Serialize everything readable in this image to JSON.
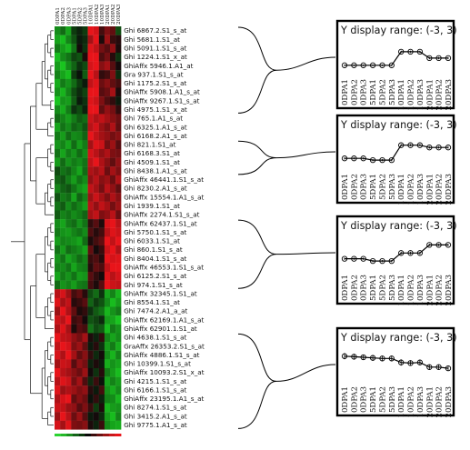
{
  "heatmap": {
    "columns": [
      "0DPA1",
      "0DPA2",
      "0DPA3",
      "5DPA1",
      "5DPA2",
      "5DPA3",
      "10DPA1",
      "10DPA2",
      "10DPA3",
      "20DPA1",
      "20DPA2",
      "20DPA3"
    ],
    "probes": [
      "Ghi 6867.2.S1_s_at",
      "Ghi 5681.1.S1_at",
      "Ghi 5091.1.S1_s_at",
      "Ghi 1224.1.S1_x_at",
      "GhiAffx 5946.1.A1_at",
      "Gra 937.1.S1_s_at",
      "Ghi 1175.2.S1_s_at",
      "GhiAffx 5908.1.A1_s_at",
      "GhiAffx 9267.1.S1_s_at",
      "Ghi 4975.1.S1_x_at",
      "Ghi 765.1.A1_s_at",
      "Ghi 6325.1.A1_s_at",
      "Ghi 6168.2.A1_s_at",
      "Ghi 821.1.S1_at",
      "Ghi 6168.3.S1_at",
      "Ghi 4509.1.S1_at",
      "Ghi 8438.1.A1_s_at",
      "GhiAffx 46441.1.S1_s_at",
      "Ghi 8230.2.A1_s_at",
      "GhiAffx 15554.1.A1_s_at",
      "Ghi 1939.1.S1_at",
      "GhiAffx 2274.1.S1_s_at",
      "GhiAffx 62437.1.S1_at",
      "Ghi 5750.1.S1_s_at",
      "Ghi 6033.1.S1_at",
      "Ghi 860.1.S1_s_at",
      "Ghi 8404.1.S1_s_at",
      "GhiAffx 46553.1.S1_s_at",
      "Ghi 6125.2.S1_s_at",
      "Ghi 974.1.S1_s_at",
      "GhiAffx 32345.1.S1_at",
      "Ghi 8554.1.S1_at",
      "Ghi 7474.2.A1_a_at",
      "GhiAffx 62169.1.A1_s_at",
      "GhiAffx 62901.1.S1_at",
      "Ghi 4638.1.S1_s_at",
      "GraAffx 26353.2.S1_s_at",
      "GhiAffx 4886.1.S1_s_at",
      "Ghi 10399.1.S1_s_at",
      "GhiAffx 10093.2.S1_x_at",
      "Ghi 4215.1.S1_s_at",
      "Ghi 6166.1.S1_s_at",
      "GhiAffx 23195.1.A1_s_at",
      "Ghi 8274.1.S1_s_at",
      "Ghi 3415.2.A1_s_at",
      "Ghi 9775.1.A1_s_at"
    ],
    "colors": {
      "high": "#e8141a",
      "low": "#19c41f",
      "mid": "#0a0a0a"
    },
    "values": [
      [
        -1.6,
        -1.2,
        -1.9,
        -0.6,
        -0.3,
        -0.6,
        2.4,
        2.1,
        0.6,
        1.2,
        0.9,
        -0.8
      ],
      [
        -1.9,
        -2.2,
        -1.5,
        -0.9,
        -0.2,
        -0.4,
        1.6,
        2.6,
        0.2,
        1.5,
        0.5,
        0.3
      ],
      [
        -1.4,
        -1.8,
        -2.1,
        -1.3,
        0.1,
        -0.5,
        2.2,
        1.9,
        1.1,
        0.8,
        1.4,
        0.2
      ],
      [
        -2.2,
        -1.6,
        -1.3,
        -0.7,
        -0.9,
        0.2,
        2.6,
        2.3,
        0.7,
        1.1,
        0.3,
        -0.5
      ],
      [
        -1.8,
        -2.4,
        -1.6,
        -1.1,
        -0.5,
        -0.8,
        2.1,
        2.4,
        1.3,
        1.6,
        0.8,
        0.1
      ],
      [
        -1.5,
        -1.9,
        -2.2,
        -0.6,
        -0.1,
        -1.0,
        2.5,
        1.8,
        0.4,
        0.6,
        1.2,
        -0.4
      ],
      [
        -2.0,
        -1.4,
        -1.7,
        -1.2,
        -0.6,
        -0.2,
        1.9,
        2.2,
        1.0,
        1.3,
        0.9,
        0.6
      ],
      [
        -1.7,
        -2.1,
        -1.5,
        -0.8,
        -0.4,
        -0.7,
        2.3,
        2.5,
        0.8,
        1.0,
        1.6,
        0.2
      ],
      [
        -2.3,
        -1.7,
        -1.8,
        -1.0,
        -0.2,
        -0.5,
        2.2,
        2.0,
        1.2,
        0.7,
        0.4,
        -0.2
      ],
      [
        -1.6,
        -2.0,
        -1.4,
        -0.5,
        -0.8,
        -0.3,
        2.4,
        2.6,
        0.9,
        1.4,
        1.1,
        0.4
      ],
      [
        -1.2,
        -1.5,
        -1.8,
        -1.4,
        -1.0,
        -1.2,
        2.0,
        1.7,
        1.9,
        1.6,
        1.3,
        1.0
      ],
      [
        -1.9,
        -1.3,
        -1.6,
        -1.1,
        -1.3,
        -0.9,
        1.8,
        2.1,
        1.5,
        1.2,
        1.7,
        0.9
      ],
      [
        -1.4,
        -1.8,
        -1.2,
        -1.6,
        -1.5,
        -1.1,
        2.3,
        1.9,
        1.6,
        1.4,
        1.1,
        1.3
      ],
      [
        -1.7,
        -1.5,
        -1.9,
        -1.2,
        -1.8,
        -1.4,
        1.6,
        2.2,
        2.0,
        1.1,
        1.5,
        0.8
      ],
      [
        -1.3,
        -1.9,
        -1.4,
        -1.7,
        -1.2,
        -1.6,
        2.1,
        1.8,
        1.4,
        1.7,
        1.2,
        1.1
      ],
      [
        -1.8,
        -1.2,
        -1.7,
        -1.4,
        -1.6,
        -1.3,
        1.9,
        2.4,
        1.7,
        1.3,
        0.9,
        1.4
      ],
      [
        -0.8,
        -1.3,
        -1.1,
        -1.5,
        -1.9,
        -1.2,
        1.7,
        1.5,
        1.8,
        1.0,
        1.6,
        1.2
      ],
      [
        -1.1,
        -0.9,
        -1.4,
        -1.8,
        -1.3,
        -1.6,
        1.4,
        1.8,
        1.3,
        1.5,
        1.0,
        1.7
      ],
      [
        -1.5,
        -1.1,
        -0.9,
        -1.3,
        -1.7,
        -1.9,
        1.9,
        1.6,
        1.1,
        1.8,
        1.4,
        0.9
      ],
      [
        -0.9,
        -1.4,
        -1.2,
        -1.9,
        -1.1,
        -1.5,
        1.5,
        2.0,
        1.6,
        1.2,
        1.7,
        1.3
      ],
      [
        -1.3,
        -1.0,
        -1.6,
        -1.2,
        -1.5,
        -1.8,
        1.8,
        1.4,
        1.9,
        1.6,
        1.1,
        1.5
      ],
      [
        -1.0,
        -1.5,
        -1.3,
        -1.6,
        -1.4,
        -1.1,
        1.6,
        1.9,
        1.2,
        1.4,
        1.8,
        1.0
      ],
      [
        -1.6,
        -1.9,
        -1.4,
        -1.2,
        -1.7,
        -1.3,
        0.4,
        0.8,
        0.2,
        2.1,
        2.4,
        1.8
      ],
      [
        -1.4,
        -1.7,
        -1.8,
        -1.5,
        -1.3,
        -1.6,
        0.7,
        0.3,
        0.6,
        1.8,
        2.2,
        2.0
      ],
      [
        -1.8,
        -1.5,
        -1.6,
        -1.7,
        -1.9,
        -1.2,
        0.2,
        0.6,
        0.9,
        2.3,
        1.9,
        2.5
      ],
      [
        -1.3,
        -1.8,
        -1.2,
        -1.4,
        -1.6,
        -1.9,
        0.9,
        0.1,
        0.5,
        2.0,
        2.6,
        1.7
      ],
      [
        -1.7,
        -1.3,
        -1.9,
        -1.6,
        -1.2,
        -1.5,
        0.5,
        0.7,
        0.3,
        2.4,
        2.1,
        2.2
      ],
      [
        -1.5,
        -1.6,
        -1.3,
        -1.9,
        -1.5,
        -1.4,
        0.3,
        0.9,
        0.7,
        1.9,
        2.3,
        2.4
      ],
      [
        -1.9,
        -1.4,
        -1.7,
        -1.3,
        -1.8,
        -1.7,
        0.8,
        0.4,
        0.1,
        2.2,
        1.8,
        2.1
      ],
      [
        -1.2,
        -1.7,
        -1.5,
        -1.8,
        -1.4,
        -1.3,
        0.6,
        0.2,
        0.8,
        2.5,
        2.0,
        1.9
      ],
      [
        1.8,
        2.1,
        1.5,
        0.6,
        0.9,
        0.3,
        -0.8,
        -1.2,
        -0.5,
        -1.9,
        -1.5,
        -2.1
      ],
      [
        2.2,
        1.6,
        1.9,
        0.3,
        0.5,
        0.8,
        -1.1,
        -0.6,
        -0.9,
        -1.6,
        -2.2,
        -1.8
      ],
      [
        1.5,
        2.3,
        1.7,
        0.9,
        0.2,
        0.4,
        -0.5,
        -1.0,
        -1.3,
        -2.1,
        -1.7,
        -1.4
      ],
      [
        2.0,
        1.8,
        2.4,
        0.5,
        0.7,
        0.1,
        -0.9,
        -0.7,
        -0.4,
        -1.8,
        -1.9,
        -2.3
      ],
      [
        1.7,
        2.2,
        1.6,
        0.2,
        0.8,
        0.6,
        -1.3,
        -0.8,
        -1.0,
        -2.2,
        -1.4,
        -1.7
      ],
      [
        2.3,
        1.9,
        1.8,
        1.4,
        1.1,
        1.6,
        0.2,
        -0.3,
        0.4,
        -1.5,
        -1.9,
        -1.6
      ],
      [
        1.9,
        2.4,
        2.1,
        1.2,
        1.5,
        0.9,
        -0.2,
        0.3,
        -0.5,
        -1.8,
        -1.4,
        -2.0
      ],
      [
        2.1,
        1.7,
        2.3,
        1.6,
        0.9,
        1.3,
        0.4,
        -0.4,
        0.1,
        -1.6,
        -2.1,
        -1.5
      ],
      [
        1.6,
        2.0,
        1.9,
        0.8,
        1.4,
        1.1,
        -0.3,
        0.2,
        -0.2,
        -2.0,
        -1.7,
        -1.9
      ],
      [
        2.4,
        1.8,
        1.6,
        1.3,
        1.0,
        1.5,
        0.1,
        -0.5,
        0.3,
        -1.4,
        -1.8,
        -2.2
      ],
      [
        1.8,
        2.2,
        2.0,
        1.1,
        1.6,
        0.7,
        -0.4,
        0.5,
        -0.1,
        -1.9,
        -1.5,
        -1.8
      ],
      [
        2.2,
        1.5,
        1.7,
        1.5,
        1.2,
        1.4,
        0.3,
        -0.2,
        0.6,
        -1.7,
        -2.0,
        -1.6
      ],
      [
        1.7,
        2.1,
        2.4,
        0.9,
        1.3,
        1.0,
        -0.1,
        0.4,
        -0.3,
        -1.5,
        -1.6,
        -2.1
      ],
      [
        2.0,
        1.9,
        1.5,
        1.4,
        0.8,
        1.2,
        0.5,
        -0.6,
        0.2,
        -2.1,
        -1.8,
        -1.7
      ],
      [
        1.5,
        2.3,
        1.8,
        1.0,
        1.5,
        0.8,
        -0.2,
        0.1,
        -0.4,
        -1.8,
        -2.2,
        -1.5
      ],
      [
        2.1,
        1.6,
        2.2,
        1.2,
        1.1,
        1.3,
        0.2,
        -0.3,
        0.5,
        -1.6,
        -1.9,
        -2.0
      ]
    ]
  },
  "clusters": [
    {
      "title": "Y display range: (-3, 3)",
      "first_row": 0,
      "last_row": 9,
      "profile": [
        -1.55,
        -1.55,
        -1.55,
        -1.55,
        -1.55,
        -1.55,
        0.8,
        0.8,
        0.8,
        -0.3,
        -0.3,
        -0.3
      ],
      "err": [
        0.15,
        0.15,
        0.15,
        0.15,
        0.15,
        0.15,
        0.2,
        0.2,
        0.2,
        0.2,
        0.2,
        0.2
      ]
    },
    {
      "title": "Y display range: (-3, 3)",
      "first_row": 13,
      "last_row": 16,
      "profile": [
        -1.3,
        -1.3,
        -1.3,
        -1.6,
        -1.6,
        -1.6,
        1.0,
        1.0,
        1.0,
        0.6,
        0.6,
        0.6
      ],
      "err": [
        0.2,
        0.2,
        0.2,
        0.2,
        0.2,
        0.2,
        0.2,
        0.2,
        0.2,
        0.2,
        0.2,
        0.2
      ]
    },
    {
      "title": "Y display range: (-3, 3)",
      "first_row": 22,
      "last_row": 29,
      "profile": [
        -1.2,
        -1.2,
        -1.2,
        -1.6,
        -1.6,
        -1.6,
        -0.2,
        -0.2,
        -0.2,
        1.2,
        1.2,
        1.2
      ],
      "err": [
        0.2,
        0.2,
        0.2,
        0.2,
        0.2,
        0.2,
        0.25,
        0.25,
        0.25,
        0.2,
        0.2,
        0.2
      ]
    },
    {
      "title": "Y display range: (-3, 3)",
      "first_row": 35,
      "last_row": 45,
      "profile": [
        1.3,
        1.2,
        1.1,
        1.0,
        0.9,
        0.9,
        0.2,
        0.1,
        0.2,
        -0.6,
        -0.6,
        -0.8
      ],
      "err": [
        0.55,
        0.5,
        0.45,
        0.5,
        0.45,
        0.5,
        0.55,
        0.5,
        0.45,
        0.45,
        0.4,
        0.45
      ]
    }
  ],
  "profile_axis": {
    "y_range": [
      -3,
      3
    ],
    "x_labels": [
      "0DPA1",
      "0DPA2",
      "0DPA3",
      "5DPA1",
      "5DPA2",
      "5DPA3",
      "10DPA1",
      "10DPA2",
      "10DPA3",
      "20DPA1",
      "20DPA2",
      "20DPA3"
    ]
  },
  "color_scale": {
    "colors": [
      "#2bd331",
      "#25b82a",
      "#1d8f21",
      "#14631a",
      "#0b3a0e",
      "#0a0a0a",
      "#3a0c0c",
      "#6b1212",
      "#9a1515",
      "#c8181b",
      "#e8141a"
    ]
  }
}
